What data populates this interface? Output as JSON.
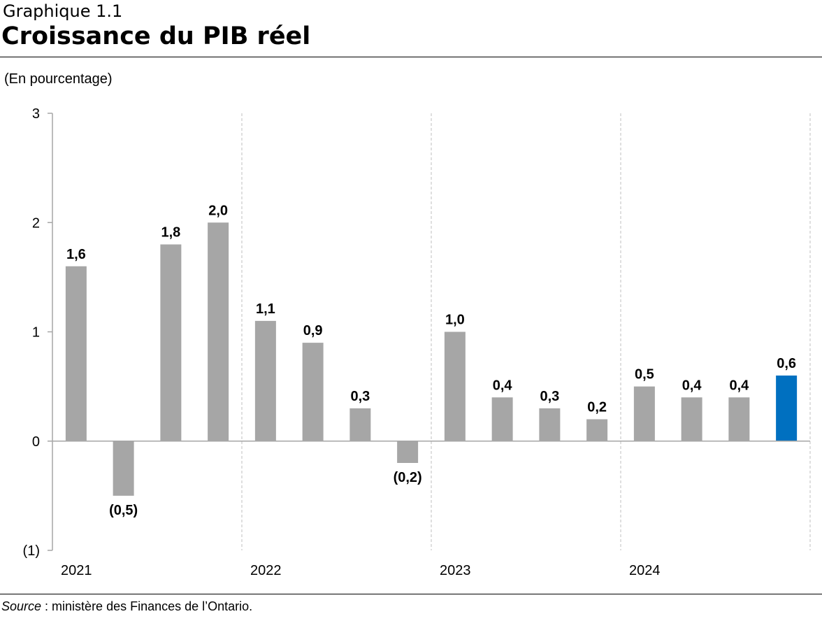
{
  "header": {
    "label": "Graphique 1.1",
    "title": "Croissance du PIB réel"
  },
  "unit_label": "(En pourcentage)",
  "source": {
    "prefix": "Source",
    "text": " : ministère des Finances de l’Ontario."
  },
  "colors": {
    "bar": "#a6a6a6",
    "highlight_bar": "#0070c0",
    "axis": "#a6a6a6",
    "year_divider": "#bfbfbf"
  },
  "chart_data": {
    "type": "bar",
    "ylim": [
      -1,
      3
    ],
    "ytick_values": [
      -1,
      0,
      1,
      2,
      3
    ],
    "ytick_labels": [
      "(1)",
      "0",
      "1",
      "2",
      "3"
    ],
    "year_labels": [
      "2021",
      "2022",
      "2023",
      "2024"
    ],
    "quarters_per_year": 4,
    "values": [
      1.6,
      -0.5,
      1.8,
      2.0,
      1.1,
      0.9,
      0.3,
      -0.2,
      1.0,
      0.4,
      0.3,
      0.2,
      0.5,
      0.4,
      0.4,
      0.6
    ],
    "value_labels": [
      "1,6",
      "(0,5)",
      "1,8",
      "2,0",
      "1,1",
      "0,9",
      "0,3",
      "(0,2)",
      "1,0",
      "0,4",
      "0,3",
      "0,2",
      "0,5",
      "0,4",
      "0,4",
      "0,6"
    ],
    "highlight_index": 15,
    "grid": false,
    "legend": "none"
  }
}
